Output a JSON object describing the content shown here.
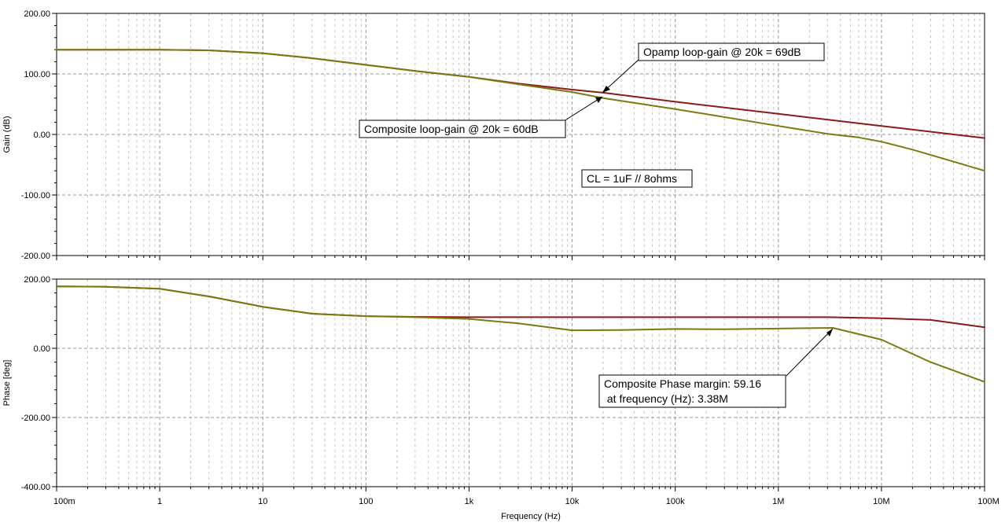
{
  "chart_data": [
    {
      "type": "line",
      "ylabel": "Gain (dB)",
      "ylim": [
        -200,
        200
      ],
      "yticks": [
        "200.00",
        "100.00",
        "0.00",
        "-100.00",
        "-200.00"
      ],
      "xscale": "log",
      "xlim": [
        0.1,
        100000000
      ],
      "grid": true,
      "series": [
        {
          "color": "#8b1a1a",
          "x": [
            0.1,
            1,
            3,
            10,
            30,
            100,
            300,
            1000,
            3000,
            10000,
            20000,
            100000,
            1000000,
            10000000,
            100000000
          ],
          "values": [
            140,
            140,
            139,
            134,
            126,
            115,
            105,
            95,
            84,
            74,
            69,
            54,
            34,
            14,
            -6
          ]
        },
        {
          "color": "#7a7a10",
          "x": [
            0.1,
            1,
            3,
            10,
            30,
            100,
            300,
            1000,
            3000,
            10000,
            20000,
            100000,
            1000000,
            3000000,
            6000000,
            10000000,
            20000000,
            50000000,
            100000000
          ],
          "values": [
            140,
            140,
            139,
            134,
            126,
            115,
            105,
            95,
            83,
            70,
            60,
            42,
            14,
            1,
            -5,
            -12,
            -25,
            -45,
            -60
          ]
        }
      ],
      "annotations": [
        {
          "text": "Opamp loop-gain @ 20k = 69dB",
          "x": 20000,
          "y": 69
        },
        {
          "text": "Composite loop-gain @ 20k = 60dB",
          "x": 20000,
          "y": 60
        },
        {
          "text": "CL = 1uF // 8ohms"
        }
      ]
    },
    {
      "type": "line",
      "xlabel": "Frequency (Hz)",
      "ylabel": "Phase [deg]",
      "ylim": [
        -400,
        200
      ],
      "yticks": [
        "200.00",
        "0.00",
        "-200.00",
        "-400.00"
      ],
      "xscale": "log",
      "xlim": [
        0.1,
        100000000
      ],
      "xticks": [
        "100m",
        "1",
        "10",
        "100",
        "1k",
        "10k",
        "100k",
        "1M",
        "10M",
        "100M"
      ],
      "grid": true,
      "series": [
        {
          "color": "#8b1a1a",
          "x": [
            0.1,
            0.3,
            1,
            3,
            10,
            30,
            100,
            300,
            1000,
            10000,
            100000,
            1000000,
            3000000,
            10000000,
            30000000,
            100000000
          ],
          "values": [
            179,
            178,
            172,
            150,
            120,
            100,
            93,
            91,
            90,
            90,
            90,
            90,
            90,
            87,
            82,
            61
          ]
        },
        {
          "color": "#7a7a10",
          "x": [
            0.1,
            0.3,
            1,
            3,
            10,
            30,
            100,
            300,
            1000,
            3000,
            10000,
            30000,
            100000,
            300000,
            1000000,
            3380000,
            10000000,
            30000000,
            100000000
          ],
          "values": [
            179,
            178,
            172,
            150,
            120,
            100,
            93,
            90,
            85,
            72,
            52,
            53,
            56,
            55,
            57,
            59,
            25,
            -40,
            -97
          ]
        }
      ],
      "annotations": [
        {
          "text": "Composite Phase margin: 59.16",
          "x": 3380000,
          "y": 59.16
        },
        {
          "text": " at frequency (Hz): 3.38M"
        }
      ]
    }
  ]
}
